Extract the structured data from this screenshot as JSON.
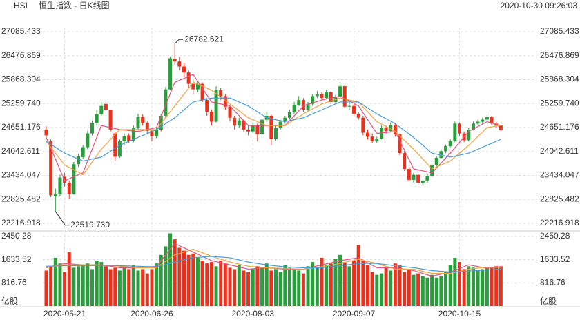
{
  "chart_data": {
    "type": "candlestick",
    "symbol": "HSI",
    "title": "恒生指数 - 日K线图",
    "timestamp": "2020-10-30 09:26:03",
    "up_color": "#2a9d3c",
    "down_color": "#e8321e",
    "ylim": [
      22216.918,
      27085.433
    ],
    "yticks": [
      22216.918,
      22825.482,
      23434.047,
      24042.611,
      24651.176,
      {
        "value": 25259.74,
        "label": "25259.740"
      },
      25868.304,
      26476.869,
      27085.433
    ],
    "max_label": "26782.621",
    "min_label": "22519.730",
    "x_labels": [
      {
        "index": 4,
        "label": "2020-05-21"
      },
      {
        "index": 23,
        "label": "2020-06-26"
      },
      {
        "index": 45,
        "label": "2020-08-03"
      },
      {
        "index": 67,
        "label": "2020-09-07"
      },
      {
        "index": 90,
        "label": "2020-10-15"
      }
    ],
    "ohlc": [
      [
        24600,
        24680,
        24380,
        24450
      ],
      [
        24300,
        24350,
        22880,
        22930
      ],
      [
        22900,
        23100,
        22519.73,
        22950
      ],
      [
        22950,
        23450,
        22900,
        23380
      ],
      [
        23400,
        23500,
        23150,
        23250
      ],
      [
        23250,
        23300,
        22850,
        22960
      ],
      [
        22960,
        23780,
        22940,
        23720
      ],
      [
        23720,
        23980,
        23650,
        23920
      ],
      [
        23900,
        24200,
        23850,
        24150
      ],
      [
        24150,
        24560,
        24100,
        24500
      ],
      [
        24500,
        24820,
        24450,
        24770
      ],
      [
        24770,
        25100,
        24700,
        24990
      ],
      [
        24990,
        25300,
        24950,
        25200
      ],
      [
        25250,
        25350,
        25000,
        25090
      ],
      [
        25090,
        25100,
        24550,
        24600
      ],
      [
        24500,
        24550,
        23800,
        23910
      ],
      [
        23910,
        24350,
        23880,
        24300
      ],
      [
        24300,
        24500,
        24200,
        24430
      ],
      [
        24450,
        24500,
        24250,
        24310
      ],
      [
        24310,
        24700,
        24280,
        24650
      ],
      [
        24650,
        25000,
        24600,
        24920
      ],
      [
        24920,
        24980,
        24700,
        24770
      ],
      [
        24770,
        24800,
        24500,
        24570
      ],
      [
        24570,
        24600,
        24300,
        24430
      ],
      [
        24430,
        24650,
        24380,
        24600
      ],
      [
        24600,
        25000,
        24550,
        24950
      ],
      [
        24950,
        25680,
        24900,
        25620
      ],
      [
        25620,
        26450,
        25600,
        26410
      ],
      [
        26400,
        26782.621,
        26250,
        26330
      ],
      [
        26330,
        26450,
        26100,
        26200
      ],
      [
        26200,
        26300,
        25950,
        26050
      ],
      [
        26050,
        26100,
        25650,
        25760
      ],
      [
        25760,
        25850,
        25500,
        25620
      ],
      [
        25620,
        25800,
        25550,
        25760
      ],
      [
        25760,
        25800,
        25300,
        25350
      ],
      [
        25350,
        25400,
        24950,
        25050
      ],
      [
        25050,
        25100,
        24700,
        24800
      ],
      [
        24800,
        25700,
        24780,
        25600
      ],
      [
        25600,
        25650,
        25350,
        25450
      ],
      [
        25450,
        25500,
        25100,
        25180
      ],
      [
        25180,
        25200,
        24800,
        24900
      ],
      [
        24900,
        24950,
        24600,
        24700
      ],
      [
        24700,
        24900,
        24650,
        24830
      ],
      [
        24830,
        24850,
        24550,
        24600
      ],
      [
        24600,
        24700,
        24450,
        24550
      ],
      [
        24550,
        24780,
        24500,
        24700
      ],
      [
        24700,
        24750,
        24300,
        24480
      ],
      [
        24480,
        24900,
        24450,
        24850
      ],
      [
        24850,
        25050,
        24800,
        24950
      ],
      [
        24950,
        24980,
        24200,
        24360
      ],
      [
        24360,
        24700,
        24320,
        24640
      ],
      [
        24640,
        24850,
        24600,
        24800
      ],
      [
        24800,
        24950,
        24750,
        24900
      ],
      [
        24900,
        25100,
        24850,
        25050
      ],
      [
        25050,
        25300,
        25000,
        25230
      ],
      [
        25230,
        25450,
        25200,
        25350
      ],
      [
        25350,
        25400,
        25050,
        25100
      ],
      [
        25100,
        25300,
        25050,
        25250
      ],
      [
        25250,
        25500,
        25200,
        25450
      ],
      [
        25450,
        25580,
        25400,
        25500
      ],
      [
        25500,
        25550,
        25350,
        25400
      ],
      [
        25400,
        25600,
        25380,
        25550
      ],
      [
        25550,
        25580,
        25250,
        25300
      ],
      [
        25300,
        25480,
        25250,
        25420
      ],
      [
        25420,
        25800,
        25400,
        25700
      ],
      [
        25700,
        25720,
        25150,
        25180
      ],
      [
        25180,
        25300,
        25100,
        25200
      ],
      [
        25200,
        25250,
        24950,
        25000
      ],
      [
        25000,
        25050,
        24850,
        24900
      ],
      [
        24900,
        24950,
        24450,
        24520
      ],
      [
        24520,
        24600,
        24350,
        24420
      ],
      [
        24420,
        24500,
        24250,
        24300
      ],
      [
        24300,
        24420,
        24250,
        24370
      ],
      [
        24370,
        24700,
        24350,
        24650
      ],
      [
        24650,
        24700,
        24500,
        24560
      ],
      [
        24560,
        24780,
        24520,
        24720
      ],
      [
        24720,
        24750,
        24420,
        24480
      ],
      [
        24480,
        24500,
        23950,
        24000
      ],
      [
        24000,
        24050,
        23550,
        23600
      ],
      [
        23600,
        23650,
        23280,
        23320
      ],
      [
        23320,
        23500,
        23250,
        23450
      ],
      [
        23450,
        23480,
        23180,
        23250
      ],
      [
        23250,
        23350,
        23200,
        23300
      ],
      [
        23300,
        23480,
        23250,
        23420
      ],
      [
        23420,
        23750,
        23400,
        23700
      ],
      [
        23700,
        23920,
        23650,
        23880
      ],
      [
        23880,
        24100,
        23850,
        24050
      ],
      [
        24050,
        24220,
        24000,
        24180
      ],
      [
        24180,
        24350,
        24150,
        24300
      ],
      [
        24300,
        24800,
        24280,
        24750
      ],
      [
        24750,
        24780,
        24450,
        24500
      ],
      [
        24500,
        24550,
        24280,
        24330
      ],
      [
        24330,
        24650,
        24300,
        24600
      ],
      [
        24600,
        24800,
        24580,
        24750
      ],
      [
        24750,
        24850,
        24700,
        24800
      ],
      [
        24800,
        24900,
        24750,
        24850
      ],
      [
        24850,
        24980,
        24800,
        24920
      ],
      [
        24920,
        24950,
        24700,
        24750
      ],
      [
        24750,
        24800,
        24650,
        24700
      ],
      [
        24700,
        24720,
        24550,
        24580
      ]
    ],
    "ma_series": [
      {
        "color": "#e8507a",
        "x": [
          0,
          4,
          8,
          12,
          16,
          20,
          24,
          28,
          32,
          36,
          40,
          44,
          48,
          52,
          56,
          60,
          64,
          68,
          72,
          76,
          80,
          84,
          88,
          92,
          96,
          99
        ],
        "values": [
          24400,
          23300,
          23500,
          24700,
          24600,
          24550,
          24650,
          25800,
          26000,
          25300,
          25200,
          24700,
          24700,
          24700,
          25200,
          25350,
          25450,
          25200,
          24500,
          24550,
          23600,
          23500,
          24000,
          24550,
          24800,
          24700
        ]
      },
      {
        "color": "#f5a03c",
        "x": [
          0,
          4,
          8,
          12,
          16,
          20,
          24,
          28,
          32,
          36,
          40,
          44,
          48,
          52,
          56,
          60,
          64,
          68,
          72,
          76,
          80,
          84,
          88,
          92,
          96,
          99
        ],
        "values": [
          24300,
          23700,
          23450,
          24100,
          24600,
          24600,
          24600,
          25200,
          25800,
          25600,
          25250,
          24900,
          24700,
          24700,
          25000,
          25250,
          25400,
          25300,
          24800,
          24550,
          24100,
          23600,
          23800,
          24200,
          24650,
          24700
        ]
      },
      {
        "color": "#4a9bd8",
        "x": [
          0,
          4,
          8,
          12,
          16,
          20,
          24,
          28,
          32,
          36,
          40,
          44,
          48,
          52,
          56,
          60,
          64,
          68,
          72,
          76,
          80,
          84,
          88,
          92,
          96,
          99
        ],
        "values": [
          24300,
          24000,
          23800,
          23900,
          24200,
          24400,
          24600,
          24900,
          25300,
          25400,
          25400,
          25200,
          24900,
          24800,
          24900,
          25100,
          25300,
          25300,
          25000,
          24750,
          24400,
          24000,
          23900,
          24000,
          24200,
          24350
        ]
      }
    ],
    "volume": [
      1250,
      1380,
      1700,
      1500,
      1200,
      1900,
      1350,
      1400,
      1450,
      1500,
      1300,
      1600,
      1550,
      1400,
      1300,
      1350,
      1250,
      1400,
      1300,
      1450,
      1250,
      1300,
      1150,
      1300,
      1500,
      1800,
      2100,
      2560,
      2350,
      2050,
      1950,
      1800,
      1850,
      1700,
      1600,
      1500,
      1550,
      1400,
      1600,
      1500,
      1350,
      1300,
      1450,
      1250,
      1200,
      1300,
      1400,
      1350,
      1500,
      1250,
      1300,
      1200,
      1450,
      1350,
      1300,
      1250,
      1150,
      1400,
      1550,
      1350,
      1700,
      1450,
      1500,
      1650,
      1800,
      1550,
      1400,
      1600,
      2150,
      1600,
      1450,
      1200,
      1100,
      1150,
      1350,
      1250,
      1500,
      1450,
      1200,
      1300,
      1100,
      1150,
      1050,
      1000,
      1100,
      1000,
      1050,
      1200,
      1450,
      1700,
      1550,
      1300,
      1400,
      1350,
      1250,
      1300,
      1350,
      1350,
      1400,
      1400
    ],
    "volume_ylim": [
      0,
      2450.28
    ],
    "volume_ticks": [
      816.76,
      1633.52,
      2450.28
    ],
    "volume_unit": "亿股",
    "volume_ma_series": [
      {
        "color": "#e8507a",
        "x": [
          0,
          4,
          8,
          12,
          16,
          20,
          24,
          28,
          32,
          36,
          40,
          44,
          48,
          52,
          56,
          60,
          64,
          68,
          72,
          76,
          80,
          84,
          88,
          92,
          96,
          99
        ],
        "values": [
          1350,
          1500,
          1450,
          1450,
          1350,
          1350,
          1400,
          2200,
          1900,
          1600,
          1450,
          1300,
          1350,
          1300,
          1300,
          1450,
          1600,
          1700,
          1350,
          1350,
          1250,
          1050,
          1200,
          1450,
          1330,
          1380
        ]
      },
      {
        "color": "#f5a03c",
        "x": [
          0,
          4,
          8,
          12,
          16,
          20,
          24,
          28,
          32,
          36,
          40,
          44,
          48,
          52,
          56,
          60,
          64,
          68,
          72,
          76,
          80,
          84,
          88,
          92,
          96,
          99
        ],
        "values": [
          1350,
          1450,
          1450,
          1450,
          1400,
          1350,
          1350,
          1800,
          2000,
          1750,
          1550,
          1400,
          1350,
          1320,
          1300,
          1380,
          1500,
          1650,
          1500,
          1300,
          1300,
          1150,
          1150,
          1300,
          1370,
          1360
        ]
      },
      {
        "color": "#4a9bd8",
        "x": [
          0,
          4,
          8,
          12,
          16,
          20,
          24,
          28,
          32,
          36,
          40,
          44,
          48,
          52,
          56,
          60,
          64,
          68,
          72,
          76,
          80,
          84,
          88,
          92,
          96,
          99
        ],
        "values": [
          1400,
          1420,
          1420,
          1430,
          1420,
          1400,
          1380,
          1550,
          1700,
          1750,
          1700,
          1550,
          1450,
          1380,
          1350,
          1350,
          1420,
          1500,
          1500,
          1420,
          1350,
          1250,
          1200,
          1230,
          1270,
          1300
        ]
      }
    ]
  }
}
